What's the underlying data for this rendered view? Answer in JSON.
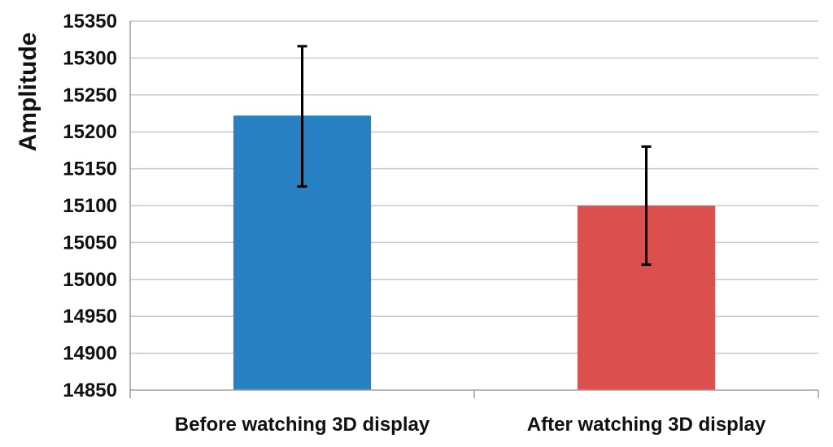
{
  "chart_data": {
    "type": "bar",
    "categories": [
      "Before watching 3D display",
      "After watching 3D display"
    ],
    "values": [
      15222,
      15100
    ],
    "error_bars": [
      {
        "low": 15126,
        "high": 15316
      },
      {
        "low": 15020,
        "high": 15180
      }
    ],
    "colors": [
      "#2680c2",
      "#db4f4f"
    ],
    "title": "",
    "xlabel": "",
    "ylabel": "Amplitude",
    "ylim": [
      14850,
      15350
    ],
    "yticks": [
      14850,
      14900,
      14950,
      15000,
      15050,
      15100,
      15150,
      15200,
      15250,
      15300,
      15350
    ],
    "grid": true,
    "legend": "none"
  }
}
